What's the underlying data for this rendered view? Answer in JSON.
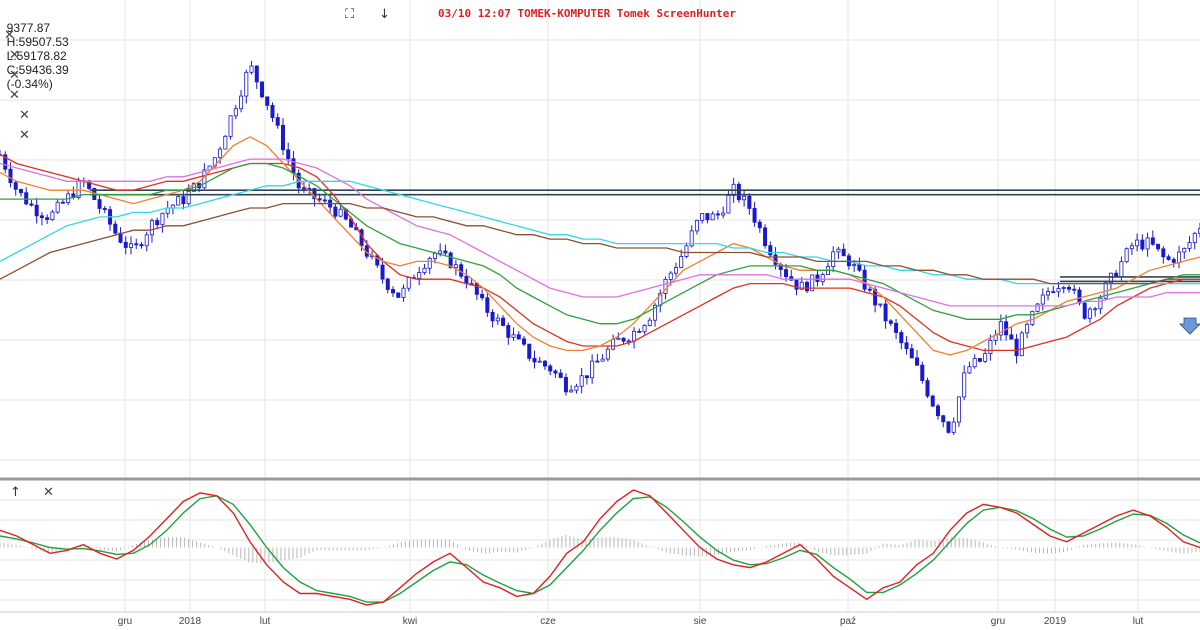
{
  "header": {
    "open": "9377.87",
    "high": "H:59507.53",
    "low": "L:59178.82",
    "close": "C:59436.39",
    "change": "(-0.34%)",
    "watermark": "03/10 12:07 TOMEK-KOMPUTER Tomek ScreenHunter"
  },
  "icons": {
    "fullscreen": "fullscreen-icon",
    "download": "download-arrow-icon",
    "close": "close-icon",
    "up": "up-arrow-icon"
  },
  "glyphs": {
    "fullscreen": "⛶",
    "download": "↓",
    "close": "✕",
    "up": "↑"
  },
  "colors": {
    "candle": "#1a1acc",
    "sma_red": "#e03020",
    "sma_orange": "#f08030",
    "sma_green": "#30a040",
    "sma_violet": "#e070e0",
    "sma_cyan": "#30d8e8",
    "sma_brown": "#8a5030",
    "osc_fast": "#e02020",
    "osc_slow": "#20a040",
    "histogram": "#b8b8b8",
    "support_line": "#334455",
    "grid": "#e4e4e4"
  },
  "chart_data": [
    {
      "type": "line",
      "title": "",
      "xlabel": "",
      "ylabel": "",
      "x_tick_labels": [
        "gru",
        "2018",
        "lut",
        "kwi",
        "cze",
        "sie",
        "paź",
        "gru",
        "2019",
        "lut"
      ],
      "x_range": [
        0,
        100
      ],
      "y_range": [
        0,
        100
      ],
      "y_scale_note": "no y-axis tick labels visible",
      "candles_description": "daily candlesticks (blue)",
      "series": [
        {
          "key": "price",
          "values": [
            72,
            64,
            60,
            58,
            62,
            66,
            60,
            54,
            50,
            56,
            60,
            62,
            66,
            72,
            82,
            92,
            84,
            74,
            64,
            62,
            60,
            56,
            50,
            44,
            40,
            46,
            50,
            48,
            44,
            38,
            34,
            30,
            26,
            24,
            20,
            22,
            26,
            30,
            32,
            36,
            44,
            50,
            58,
            58,
            64,
            60,
            52,
            46,
            42,
            44,
            50,
            48,
            42,
            36,
            30,
            24,
            16,
            10,
            24,
            26,
            34,
            28,
            36,
            42,
            44,
            36,
            40,
            46,
            52,
            52,
            48,
            50,
            56
          ]
        },
        {
          "key": "sma_red",
          "values": [
            72,
            70,
            69,
            68,
            67,
            66,
            65,
            64,
            64,
            65,
            66,
            66,
            67,
            68,
            69,
            70,
            70,
            70,
            69,
            67,
            63,
            58,
            52,
            48,
            45,
            44,
            44,
            44,
            43,
            42,
            40,
            37,
            34,
            32,
            30,
            29,
            29,
            29,
            30,
            32,
            34,
            36,
            38,
            40,
            42,
            43,
            43,
            43,
            42,
            42,
            42,
            42,
            41,
            40,
            38,
            35,
            32,
            30,
            29,
            28,
            28,
            28,
            29,
            30,
            31,
            33,
            35,
            38,
            40,
            42,
            43,
            44,
            44
          ]
        },
        {
          "key": "sma_orange",
          "values": [
            68,
            66,
            65,
            64,
            64,
            64,
            63,
            62,
            61,
            62,
            63,
            64,
            66,
            70,
            74,
            76,
            74,
            70,
            66,
            62,
            58,
            54,
            50,
            48,
            47,
            48,
            48,
            47,
            45,
            42,
            38,
            34,
            31,
            29,
            28,
            28,
            29,
            31,
            34,
            38,
            42,
            46,
            48,
            50,
            52,
            51,
            49,
            47,
            46,
            46,
            46,
            45,
            43,
            40,
            36,
            32,
            28,
            27,
            28,
            30,
            32,
            34,
            35,
            37,
            39,
            40,
            41,
            42,
            44,
            46,
            47,
            48,
            49
          ]
        },
        {
          "key": "sma_green",
          "values": [
            62,
            62,
            62,
            62,
            62,
            63,
            63,
            63,
            63,
            63,
            64,
            64,
            65,
            67,
            69,
            70,
            70,
            69,
            67,
            65,
            62,
            59,
            56,
            54,
            52,
            51,
            50,
            49,
            48,
            47,
            45,
            42,
            40,
            38,
            36,
            35,
            34,
            34,
            35,
            37,
            39,
            41,
            43,
            45,
            46,
            47,
            47,
            47,
            47,
            46,
            46,
            45,
            44,
            43,
            41,
            39,
            37,
            36,
            35,
            35,
            35,
            36,
            36,
            37,
            38,
            39,
            40,
            41,
            42,
            43,
            44,
            45,
            45
          ]
        },
        {
          "key": "sma_violet",
          "values": [
            70,
            69,
            68,
            67,
            66,
            66,
            66,
            66,
            66,
            66,
            67,
            67,
            68,
            69,
            70,
            71,
            71,
            71,
            70,
            69,
            67,
            65,
            62,
            60,
            58,
            56,
            55,
            54,
            52,
            50,
            48,
            46,
            44,
            42,
            41,
            40,
            40,
            40,
            41,
            42,
            43,
            44,
            45,
            45,
            45,
            45,
            45,
            44,
            44,
            44,
            44,
            44,
            43,
            42,
            41,
            40,
            39,
            38,
            38,
            38,
            38,
            38,
            38,
            38,
            38,
            39,
            39,
            40,
            40,
            40,
            41,
            41,
            41
          ]
        },
        {
          "key": "sma_cyan",
          "values": [
            48,
            50,
            52,
            54,
            56,
            57,
            58,
            58,
            59,
            59,
            60,
            60,
            61,
            62,
            63,
            64,
            65,
            65,
            66,
            66,
            66,
            66,
            65,
            64,
            63,
            62,
            61,
            60,
            59,
            58,
            57,
            56,
            55,
            54,
            54,
            53,
            53,
            52,
            52,
            52,
            52,
            52,
            52,
            52,
            51,
            51,
            50,
            50,
            49,
            49,
            48,
            48,
            47,
            47,
            46,
            46,
            45,
            45,
            44,
            44,
            44,
            43,
            43,
            43,
            43,
            43,
            43,
            43,
            43,
            43,
            43,
            43,
            43
          ]
        },
        {
          "key": "sma_brown",
          "values": [
            44,
            46,
            48,
            50,
            51,
            52,
            53,
            54,
            55,
            55,
            56,
            56,
            57,
            58,
            59,
            60,
            60,
            61,
            61,
            61,
            61,
            61,
            60,
            60,
            59,
            58,
            58,
            57,
            56,
            56,
            55,
            54,
            54,
            53,
            53,
            52,
            52,
            51,
            51,
            51,
            51,
            50,
            50,
            50,
            50,
            50,
            49,
            49,
            49,
            48,
            48,
            48,
            48,
            47,
            47,
            46,
            46,
            45,
            45,
            44,
            44,
            44,
            44,
            43,
            43,
            43,
            43,
            43,
            43,
            43,
            44,
            44,
            44
          ]
        }
      ],
      "horizontal_lines": [
        64,
        63,
        44.5,
        43.5
      ]
    },
    {
      "type": "line",
      "title": "",
      "x_range": [
        0,
        100
      ],
      "y_range": [
        -100,
        100
      ],
      "series": [
        {
          "key": "osc_fast",
          "values": [
            30,
            20,
            5,
            -10,
            -5,
            5,
            -10,
            -20,
            -5,
            20,
            50,
            80,
            95,
            90,
            60,
            10,
            -30,
            -60,
            -80,
            -80,
            -85,
            -90,
            -100,
            -95,
            -70,
            -45,
            -25,
            -10,
            -35,
            -60,
            -70,
            -85,
            -80,
            -50,
            -10,
            10,
            50,
            80,
            100,
            90,
            60,
            30,
            0,
            -20,
            -30,
            -35,
            -25,
            -10,
            5,
            -20,
            -50,
            -70,
            -90,
            -70,
            -60,
            -30,
            -10,
            30,
            60,
            75,
            70,
            60,
            40,
            20,
            10,
            25,
            40,
            55,
            65,
            55,
            35,
            10,
            0
          ]
        },
        {
          "key": "osc_slow",
          "values": [
            20,
            15,
            8,
            0,
            -3,
            -2,
            -6,
            -12,
            -10,
            5,
            30,
            60,
            85,
            90,
            75,
            40,
            0,
            -35,
            -60,
            -75,
            -80,
            -85,
            -95,
            -95,
            -80,
            -60,
            -40,
            -25,
            -30,
            -48,
            -62,
            -75,
            -80,
            -65,
            -35,
            -5,
            30,
            60,
            85,
            88,
            70,
            45,
            18,
            -5,
            -22,
            -30,
            -28,
            -18,
            -5,
            -12,
            -35,
            -55,
            -78,
            -78,
            -65,
            -45,
            -22,
            10,
            42,
            65,
            70,
            64,
            50,
            32,
            18,
            20,
            32,
            46,
            58,
            56,
            42,
            22,
            8
          ]
        }
      ]
    }
  ]
}
